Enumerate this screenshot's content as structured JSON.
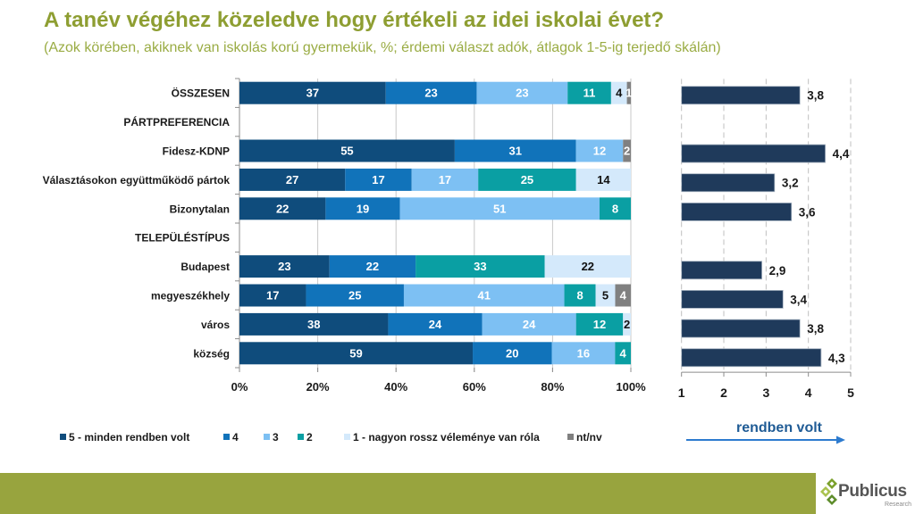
{
  "header": {
    "title": "A tanév végéhez közeledve hogy értékeli az idei iskolai évet?",
    "subtitle": "(Azok körében, akiknek van iskolás korú gyermekük, %; érdemi választ adók, átlagok 1-5-ig terjedő skálán)"
  },
  "colors": {
    "title": "#8e9e32",
    "subtitle": "#9aac44",
    "footer_band": "#98a43e",
    "arrow": "#2d7bcf"
  },
  "chart_data": [
    {
      "type": "bar",
      "orientation": "horizontal",
      "stacked": true,
      "normalized_percent": true,
      "title": "",
      "xlabel": "",
      "ylabel": "",
      "xlim": [
        0,
        100
      ],
      "xticks": [
        "0%",
        "20%",
        "40%",
        "60%",
        "80%",
        "100%"
      ],
      "grid": true,
      "legend_position": "bottom",
      "categories": [
        "ÖSSZESEN",
        "PÁRTPREFERENCIA",
        "Fidesz-KDNP",
        "Választásokon együttműködő pártok",
        "Bizonytalan",
        "TELEPÜLÉSTÍPUS",
        "Budapest",
        "megyeszékhely",
        "város",
        "község"
      ],
      "series": [
        {
          "name": "5 - minden rendben volt",
          "color": "#0f4c7c",
          "label_color": "#ffffff",
          "values": [
            37,
            null,
            55,
            27,
            22,
            null,
            23,
            17,
            38,
            59
          ]
        },
        {
          "name": "4",
          "color": "#1173ba",
          "label_color": "#ffffff",
          "values": [
            23,
            null,
            31,
            17,
            19,
            null,
            22,
            25,
            24,
            20
          ]
        },
        {
          "name": "3",
          "color": "#7dc0f3",
          "label_color": "#ffffff",
          "values": [
            23,
            null,
            12,
            17,
            51,
            null,
            null,
            41,
            24,
            16
          ]
        },
        {
          "name": "2",
          "color": "#0a9fa3",
          "label_color": "#ffffff",
          "values": [
            11,
            null,
            null,
            25,
            8,
            null,
            33,
            8,
            12,
            4
          ]
        },
        {
          "name": "1 - nagyon rossz véleménye van róla",
          "color": "#d4e9fb",
          "label_color": "#111111",
          "values": [
            4,
            null,
            null,
            14,
            null,
            null,
            22,
            5,
            2,
            null
          ]
        },
        {
          "name": "nt/nv",
          "color": "#808080",
          "label_color": "#ffffff",
          "values": [
            1,
            null,
            2,
            null,
            null,
            null,
            null,
            4,
            null,
            null
          ]
        }
      ]
    },
    {
      "type": "bar",
      "orientation": "horizontal",
      "title": "",
      "xlabel": "",
      "ylabel": "",
      "xlim": [
        1,
        5
      ],
      "xticks": [
        "1",
        "2",
        "3",
        "4",
        "5"
      ],
      "grid": true,
      "color": "#1f3a5b",
      "categories": [
        "ÖSSZESEN",
        "PÁRTPREFERENCIA",
        "Fidesz-KDNP",
        "Választásokon együttműködő pártok",
        "Bizonytalan",
        "TELEPÜLÉSTÍPUS",
        "Budapest",
        "megyeszékhely",
        "város",
        "község"
      ],
      "values": [
        3.8,
        null,
        4.4,
        3.2,
        3.6,
        null,
        2.9,
        3.4,
        3.8,
        4.3
      ],
      "labels": [
        "3,8",
        null,
        "4,4",
        "3,2",
        "3,6",
        null,
        "2,9",
        "3,4",
        "3,8",
        "4,3"
      ],
      "annotation": "rendben volt"
    }
  ],
  "footer": {
    "logo_name": "Publicus",
    "logo_sub": "Research"
  }
}
